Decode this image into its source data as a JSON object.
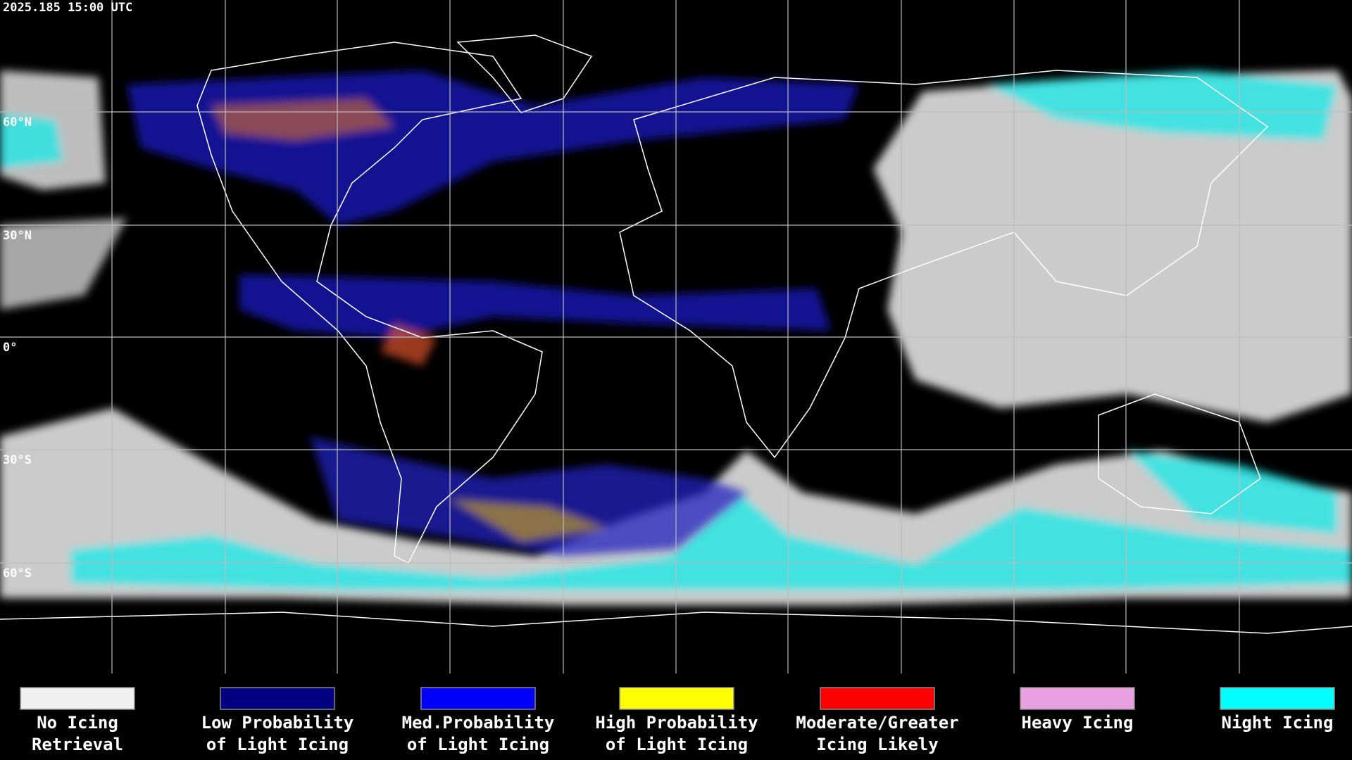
{
  "timestamp": "2025.185 15:00 UTC",
  "latitude_labels": [
    "60°N",
    "30°N",
    "0°",
    "30°S",
    "60°S"
  ],
  "legend": [
    {
      "lines": [
        "No Icing",
        "Retrieval"
      ],
      "color": "#f0f0f0"
    },
    {
      "lines": [
        "Low Probability",
        "of Light Icing"
      ],
      "color": "#000080"
    },
    {
      "lines": [
        "Med.Probability",
        "of Light Icing"
      ],
      "color": "#0000ff"
    },
    {
      "lines": [
        "High Probability",
        "of Light Icing"
      ],
      "color": "#ffff00"
    },
    {
      "lines": [
        "Moderate/Greater",
        "Icing Likely"
      ],
      "color": "#ff0000"
    },
    {
      "lines": [
        "Heavy Icing"
      ],
      "color": "#e8a0e0"
    },
    {
      "lines": [
        "Night Icing"
      ],
      "color": "#00ffff"
    }
  ]
}
